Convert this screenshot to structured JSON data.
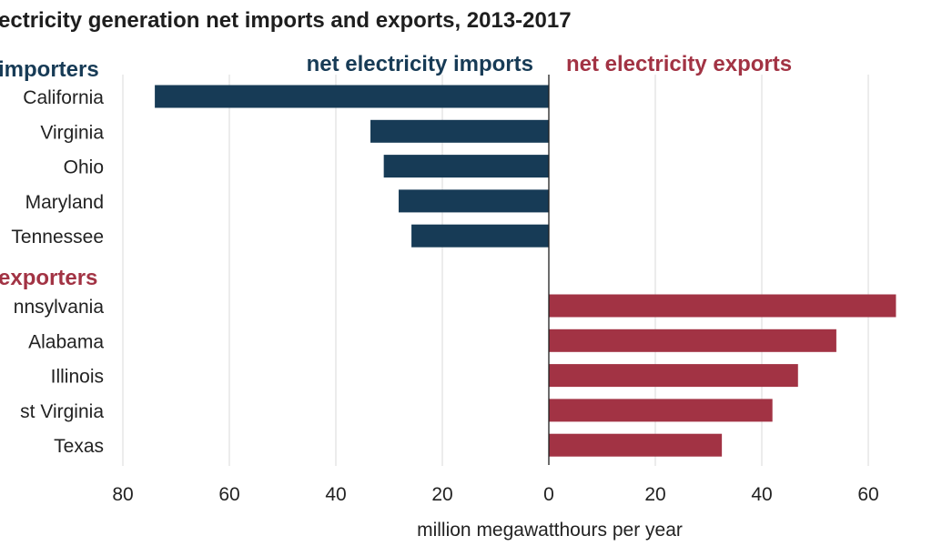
{
  "chart_data": {
    "type": "bar",
    "orientation": "horizontal",
    "title": "ectricity generation net imports and exports, 2013-2017",
    "xlabel": "million megawatthours per year",
    "left_header": "net electricity imports",
    "right_header": "net electricity exports",
    "xlim": [
      -80,
      70
    ],
    "x_ticks": [
      -80,
      -60,
      -40,
      -20,
      0,
      20,
      40,
      60
    ],
    "x_tick_labels": [
      "80",
      "60",
      "40",
      "20",
      "0",
      "20",
      "40",
      "60"
    ],
    "grid": true,
    "groups": [
      {
        "name": "importers",
        "color": "#173b56",
        "categories": [
          "California",
          "Virginia",
          "Ohio",
          "Maryland",
          "Tennessee"
        ],
        "values": [
          -74,
          -33.5,
          -31,
          -28.2,
          -25.8
        ]
      },
      {
        "name": "exporters",
        "color": "#a23344",
        "categories": [
          "nnsylvania",
          "Alabama",
          "Illinois",
          "st Virginia",
          "Texas"
        ],
        "values": [
          65.2,
          54,
          46.8,
          42,
          32.5
        ]
      }
    ]
  },
  "colors": {
    "importer": "#173b56",
    "exporter": "#a23344",
    "grid": "#d9d9d9",
    "axis": "#1e1e1e"
  }
}
